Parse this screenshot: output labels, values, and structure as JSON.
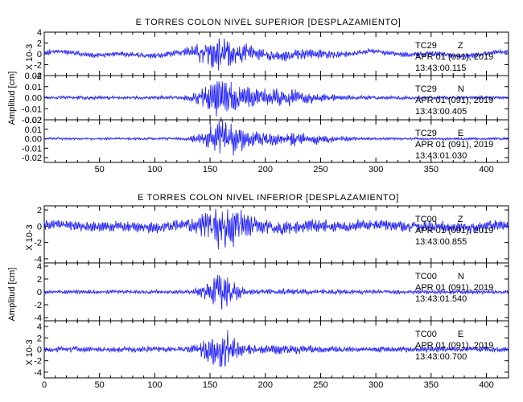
{
  "chart_data": [
    {
      "type": "line",
      "title": "E TORRES COLON NIVEL SUPERIOR [DESPLAZAMIENTO]",
      "ylabel": "Amplitud [cm]",
      "xlim": [
        0,
        420
      ],
      "x_ticks": [
        "50",
        "100",
        "150",
        "200",
        "250",
        "300",
        "350",
        "400"
      ],
      "panels": [
        {
          "station": "TC29",
          "component": "Z",
          "date": "APR 01 (091), 2019",
          "time": "13:43:00.115",
          "scale_label": "X 10-3",
          "ylim": [
            -4,
            4
          ],
          "y_ticks": [
            "4",
            "2",
            "0",
            "-2",
            "-4"
          ],
          "signal": {
            "noise": 0.55,
            "burst": 2.9,
            "peak": 160,
            "width": 24,
            "coda": 0.6,
            "coda_center": 225,
            "coda_width": 40,
            "drift": 0.8,
            "seed": 11
          }
        },
        {
          "station": "TC29",
          "component": "N",
          "date": "APR 01 (091), 2019",
          "time": "13:43:00.405",
          "scale_label": "",
          "ylim": [
            -0.02,
            0.02
          ],
          "y_ticks": [
            "0.02",
            "0.01",
            "0.00",
            "-0.01",
            "-0.02"
          ],
          "signal": {
            "noise": 0.0018,
            "burst": 0.017,
            "peak": 160,
            "width": 18,
            "coda": 0.008,
            "coda_center": 205,
            "coda_width": 45,
            "drift": 0.0,
            "seed": 23
          }
        },
        {
          "station": "TC29",
          "component": "E",
          "date": "APR 01 (091), 2019",
          "time": "13:43:01.030",
          "scale_label": "",
          "ylim": [
            -0.025,
            0.02
          ],
          "y_ticks": [
            "0.02",
            "0.01",
            "0.00",
            "-0.01",
            "-0.02"
          ],
          "signal": {
            "noise": 0.0015,
            "burst": 0.018,
            "peak": 163,
            "width": 20,
            "coda": 0.008,
            "coda_center": 215,
            "coda_width": 45,
            "drift": 0.0,
            "seed": 37
          }
        }
      ]
    },
    {
      "type": "line",
      "title": "E TORRES COLON NIVEL INFERIOR [DESPLAZAMIENTO]",
      "ylabel": "Amplitud [cm]",
      "xlim": [
        0,
        420
      ],
      "x_ticks": [
        "0",
        "50",
        "100",
        "150",
        "200",
        "250",
        "300",
        "350",
        "400"
      ],
      "panels": [
        {
          "station": "TC00",
          "component": "Z",
          "date": "APR 01 (091), 2019",
          "time": "13:43:00.855",
          "scale_label": "X 10-3",
          "ylim": [
            -4.5,
            2.5
          ],
          "y_ticks": [
            "2",
            "0",
            "-2",
            "-4"
          ],
          "signal": {
            "noise": 0.75,
            "burst": 2.6,
            "peak": 162,
            "width": 20,
            "coda": 0.3,
            "coda_center": 230,
            "coda_width": 40,
            "drift": 0.4,
            "seed": 41
          }
        },
        {
          "station": "TC00",
          "component": "N",
          "date": "APR 01 (091), 2019",
          "time": "13:43:01.540",
          "scale_label": "",
          "ylim": [
            -4.5,
            4.5
          ],
          "y_ticks": [
            "4",
            "2",
            "0",
            "-2",
            "-4"
          ],
          "signal": {
            "noise": 0.35,
            "burst": 2.8,
            "peak": 160,
            "width": 15,
            "coda": 0.2,
            "coda_center": 220,
            "coda_width": 40,
            "drift": 0.0,
            "seed": 53
          }
        },
        {
          "station": "TC00",
          "component": "E",
          "date": "APR 01 (091), 2019",
          "time": "13:43:00.700",
          "scale_label": "X 10-3",
          "ylim": [
            -5,
            5
          ],
          "y_ticks": [
            "4",
            "2",
            "0",
            "-2",
            "-4"
          ],
          "signal": {
            "noise": 0.55,
            "burst": 3.4,
            "peak": 160,
            "width": 16,
            "coda": 0.4,
            "coda_center": 215,
            "coda_width": 40,
            "drift": 0.0,
            "seed": 67
          }
        }
      ]
    }
  ],
  "colors": {
    "trace": "#1a1aff",
    "axes": "#000000"
  }
}
